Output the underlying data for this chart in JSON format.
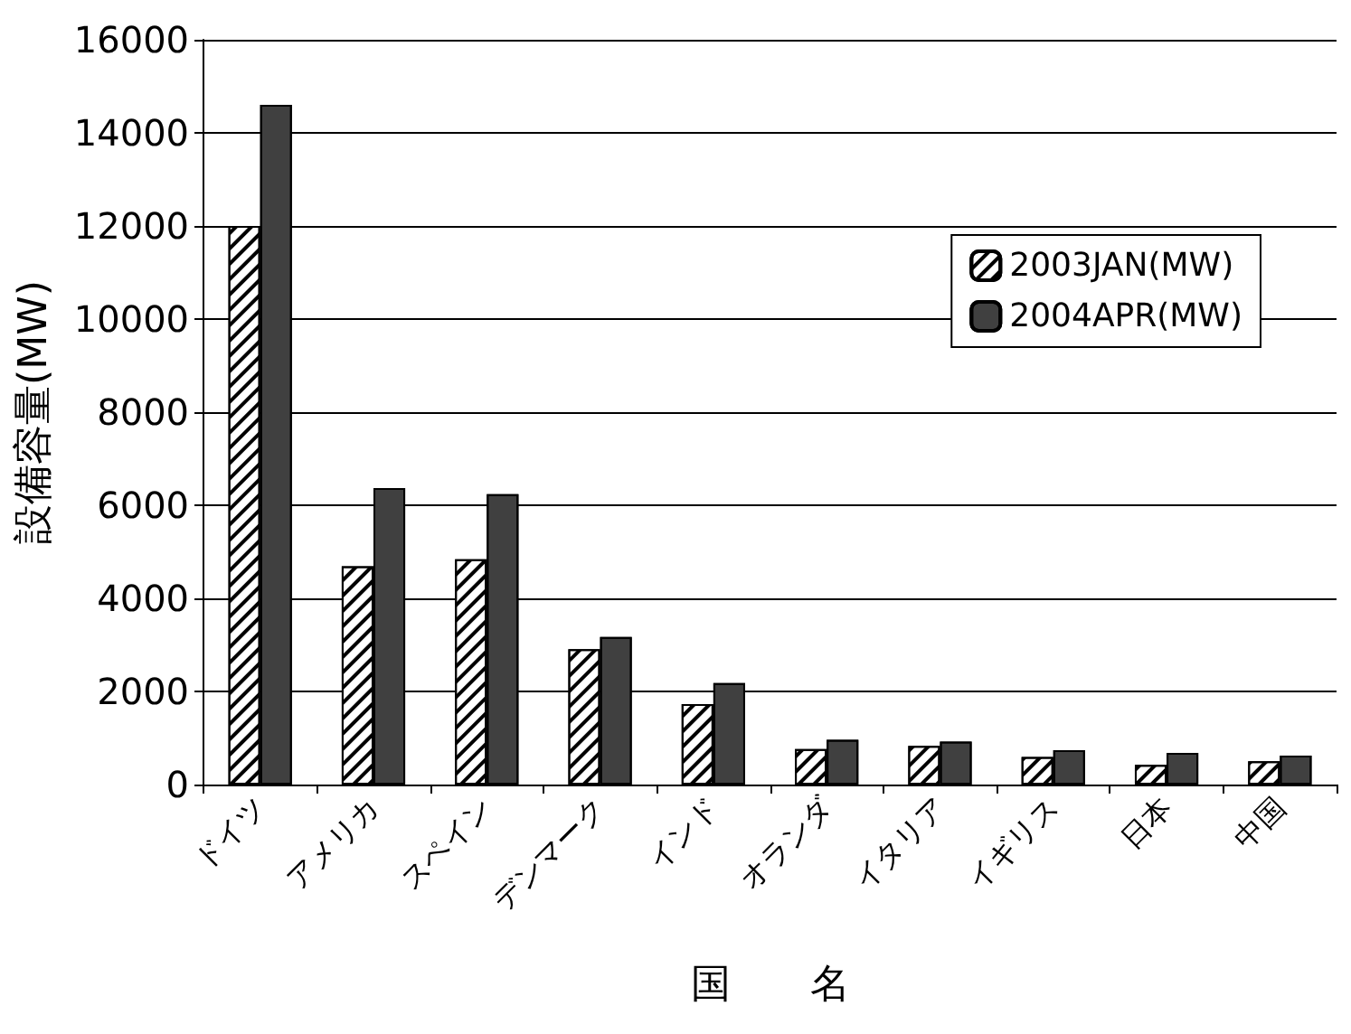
{
  "chart_data": {
    "type": "bar",
    "xlabel": "国　　名",
    "ylabel": "設備容量(MW)",
    "categories": [
      "ドイツ",
      "アメリカ",
      "スペイン",
      "デンマーク",
      "インド",
      "オランダ",
      "イタリア",
      "イギリス",
      "日本",
      "中国"
    ],
    "series": [
      {
        "name": "2003JAN(MW)",
        "color": "#ffffff",
        "values": [
          12000,
          4690,
          4840,
          2910,
          1730,
          760,
          830,
          590,
          420,
          500
        ]
      },
      {
        "name": "2004APR(MW)",
        "color": "#404040",
        "values": [
          14600,
          6370,
          6240,
          3170,
          2180,
          960,
          920,
          740,
          680,
          620
        ]
      }
    ],
    "ylim": [
      0,
      16000
    ],
    "yticks": [
      0,
      2000,
      4000,
      6000,
      8000,
      10000,
      12000,
      14000,
      16000
    ],
    "grid": "y",
    "legend": "top right"
  }
}
